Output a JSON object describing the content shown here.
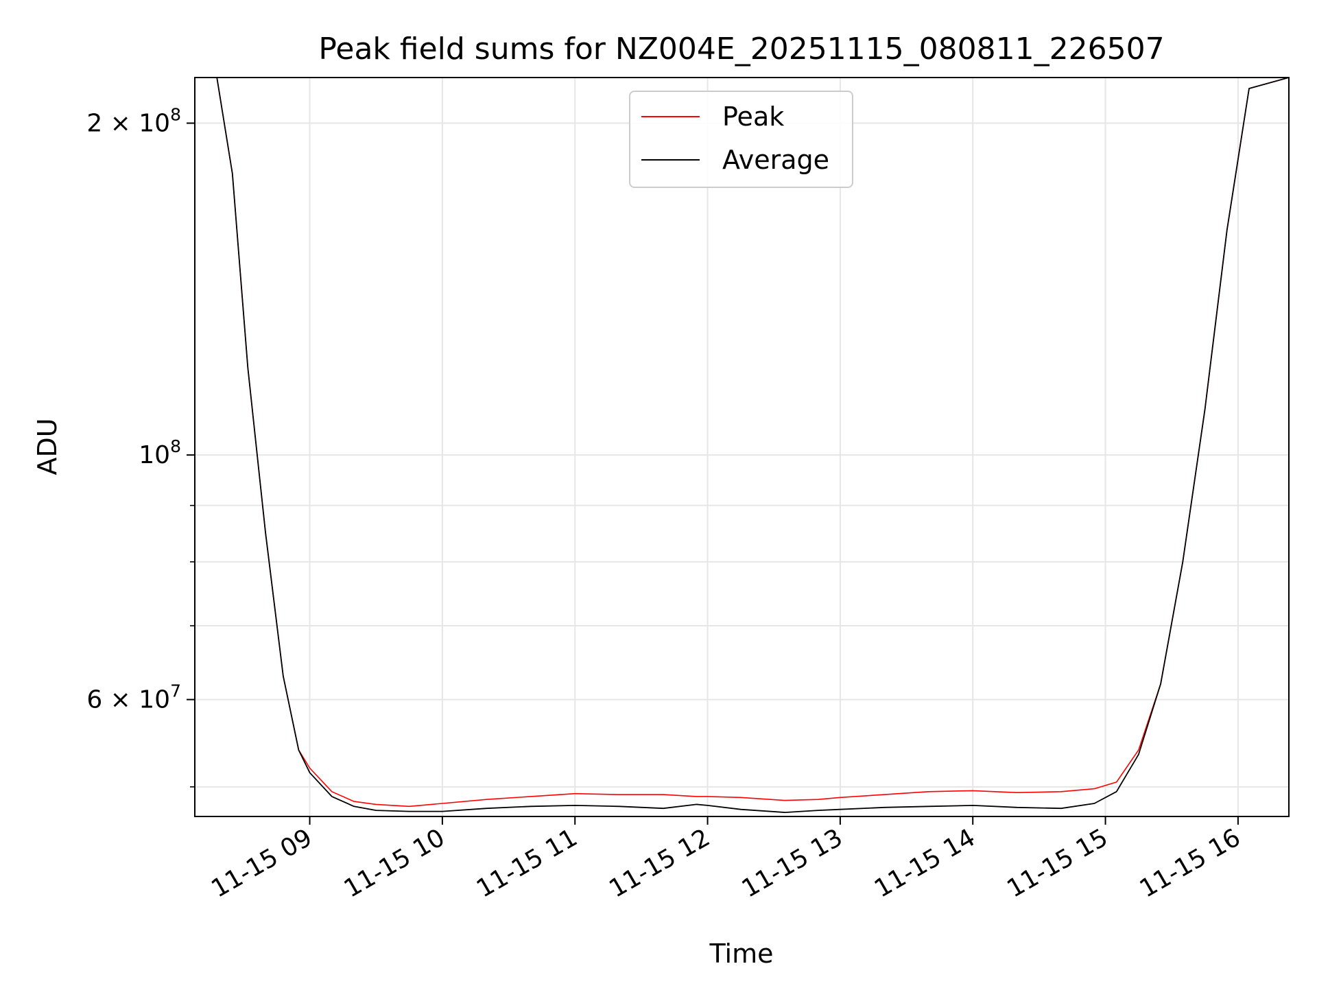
{
  "chart_data": {
    "type": "line",
    "title": "Peak field sums for NZ004E_20251115_080811_226507",
    "xlabel": "Time",
    "ylabel": "ADU",
    "x_tick_labels": [
      "11-15 09",
      "11-15 10",
      "11-15 11",
      "11-15 12",
      "11-15 13",
      "11-15 14",
      "11-15 15",
      "11-15 16"
    ],
    "x_ticks": [
      "2025-11-15 09:00",
      "2025-11-15 10:00",
      "2025-11-15 11:00",
      "2025-11-15 12:00",
      "2025-11-15 13:00",
      "2025-11-15 14:00",
      "2025-11-15 15:00",
      "2025-11-15 16:00"
    ],
    "xlim": [
      "2025-11-15 08:08",
      "2025-11-15 16:23"
    ],
    "yscale": "log",
    "ylim": [
      47000000,
      220000000
    ],
    "y_major_ticks": [
      {
        "value": 200000000,
        "mantissa": "2",
        "times": "×",
        "base": "10",
        "exp": "8"
      },
      {
        "value": 100000000,
        "mantissa": "",
        "times": "",
        "base": "10",
        "exp": "8"
      },
      {
        "value": 60000000,
        "mantissa": "6",
        "times": "×",
        "base": "10",
        "exp": "7"
      }
    ],
    "y_minor_ticks": [
      50000000,
      70000000,
      80000000,
      90000000
    ],
    "grid": true,
    "legend": {
      "position": "upper center"
    },
    "series": [
      {
        "name": "Peak",
        "color": "#ff0000",
        "x": [
          "2025-11-15 08:08",
          "2025-11-15 08:18",
          "2025-11-15 08:25",
          "2025-11-15 08:32",
          "2025-11-15 08:40",
          "2025-11-15 08:48",
          "2025-11-15 08:55",
          "2025-11-15 09:00",
          "2025-11-15 09:10",
          "2025-11-15 09:20",
          "2025-11-15 09:30",
          "2025-11-15 09:45",
          "2025-11-15 10:00",
          "2025-11-15 10:20",
          "2025-11-15 10:40",
          "2025-11-15 11:00",
          "2025-11-15 11:20",
          "2025-11-15 11:40",
          "2025-11-15 11:55",
          "2025-11-15 12:00",
          "2025-11-15 12:15",
          "2025-11-15 12:35",
          "2025-11-15 12:50",
          "2025-11-15 13:00",
          "2025-11-15 13:20",
          "2025-11-15 13:40",
          "2025-11-15 14:00",
          "2025-11-15 14:20",
          "2025-11-15 14:40",
          "2025-11-15 14:55",
          "2025-11-15 15:05",
          "2025-11-15 15:15",
          "2025-11-15 15:25",
          "2025-11-15 15:35",
          "2025-11-15 15:45",
          "2025-11-15 15:55",
          "2025-11-15 16:05",
          "2025-11-15 16:23"
        ],
        "y": [
          220000000,
          220000000,
          180000000,
          120000000,
          85000000,
          63000000,
          54000000,
          52000000,
          49500000,
          48500000,
          48200000,
          48000000,
          48300000,
          48700000,
          49000000,
          49300000,
          49200000,
          49200000,
          49000000,
          49000000,
          48900000,
          48600000,
          48700000,
          48900000,
          49200000,
          49500000,
          49600000,
          49400000,
          49500000,
          49800000,
          50500000,
          54000000,
          62000000,
          80000000,
          110000000,
          160000000,
          215000000,
          220000000
        ]
      },
      {
        "name": "Average",
        "color": "#000000",
        "x": [
          "2025-11-15 08:08",
          "2025-11-15 08:18",
          "2025-11-15 08:25",
          "2025-11-15 08:32",
          "2025-11-15 08:40",
          "2025-11-15 08:48",
          "2025-11-15 08:55",
          "2025-11-15 09:00",
          "2025-11-15 09:10",
          "2025-11-15 09:20",
          "2025-11-15 09:30",
          "2025-11-15 09:45",
          "2025-11-15 10:00",
          "2025-11-15 10:20",
          "2025-11-15 10:40",
          "2025-11-15 11:00",
          "2025-11-15 11:20",
          "2025-11-15 11:40",
          "2025-11-15 11:55",
          "2025-11-15 12:00",
          "2025-11-15 12:15",
          "2025-11-15 12:35",
          "2025-11-15 12:50",
          "2025-11-15 13:00",
          "2025-11-15 13:20",
          "2025-11-15 13:40",
          "2025-11-15 14:00",
          "2025-11-15 14:20",
          "2025-11-15 14:40",
          "2025-11-15 14:55",
          "2025-11-15 15:05",
          "2025-11-15 15:15",
          "2025-11-15 15:25",
          "2025-11-15 15:35",
          "2025-11-15 15:45",
          "2025-11-15 15:55",
          "2025-11-15 16:05",
          "2025-11-15 16:23"
        ],
        "y": [
          220000000,
          220000000,
          180000000,
          120000000,
          85000000,
          63000000,
          54000000,
          51500000,
          49000000,
          48000000,
          47600000,
          47500000,
          47500000,
          47800000,
          48000000,
          48100000,
          48000000,
          47800000,
          48200000,
          48100000,
          47700000,
          47400000,
          47600000,
          47700000,
          47900000,
          48000000,
          48100000,
          47900000,
          47800000,
          48300000,
          49500000,
          53500000,
          62000000,
          80000000,
          110000000,
          160000000,
          215000000,
          220000000
        ]
      }
    ]
  }
}
